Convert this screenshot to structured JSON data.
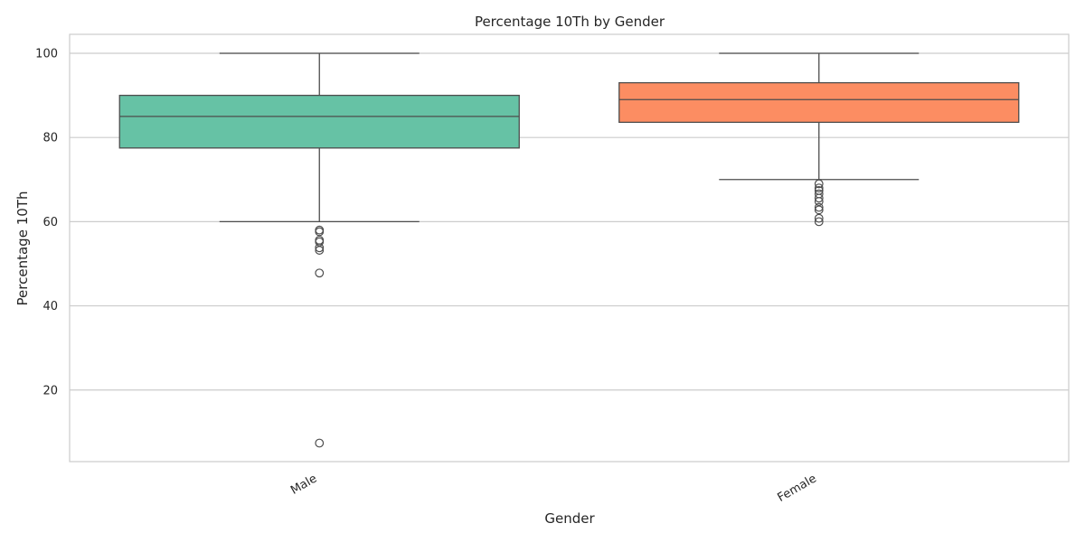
{
  "chart_data": {
    "type": "box",
    "title": "Percentage 10Th by Gender",
    "xlabel": "Gender",
    "ylabel": "Percentage 10Th",
    "categories": [
      "Male",
      "Female"
    ],
    "ylim": [
      3,
      104.5
    ],
    "yticks": [
      20,
      40,
      60,
      80,
      100
    ],
    "grid": true,
    "colors": [
      "#66c2a5",
      "#fc8d62"
    ],
    "series": [
      {
        "category": "Male",
        "whisker_low": 60,
        "q1": 77.5,
        "median": 85,
        "q3": 90,
        "whisker_high": 100,
        "outliers": [
          58,
          57.6,
          55.6,
          55.2,
          53.8,
          53.2,
          47.8,
          7.4
        ]
      },
      {
        "category": "Female",
        "whisker_low": 70,
        "q1": 83.6,
        "median": 89,
        "q3": 93,
        "whisker_high": 100,
        "outliers": [
          69,
          68,
          67.4,
          66.6,
          65.6,
          64.8,
          63.4,
          62.8,
          60.8,
          60
        ]
      }
    ]
  }
}
